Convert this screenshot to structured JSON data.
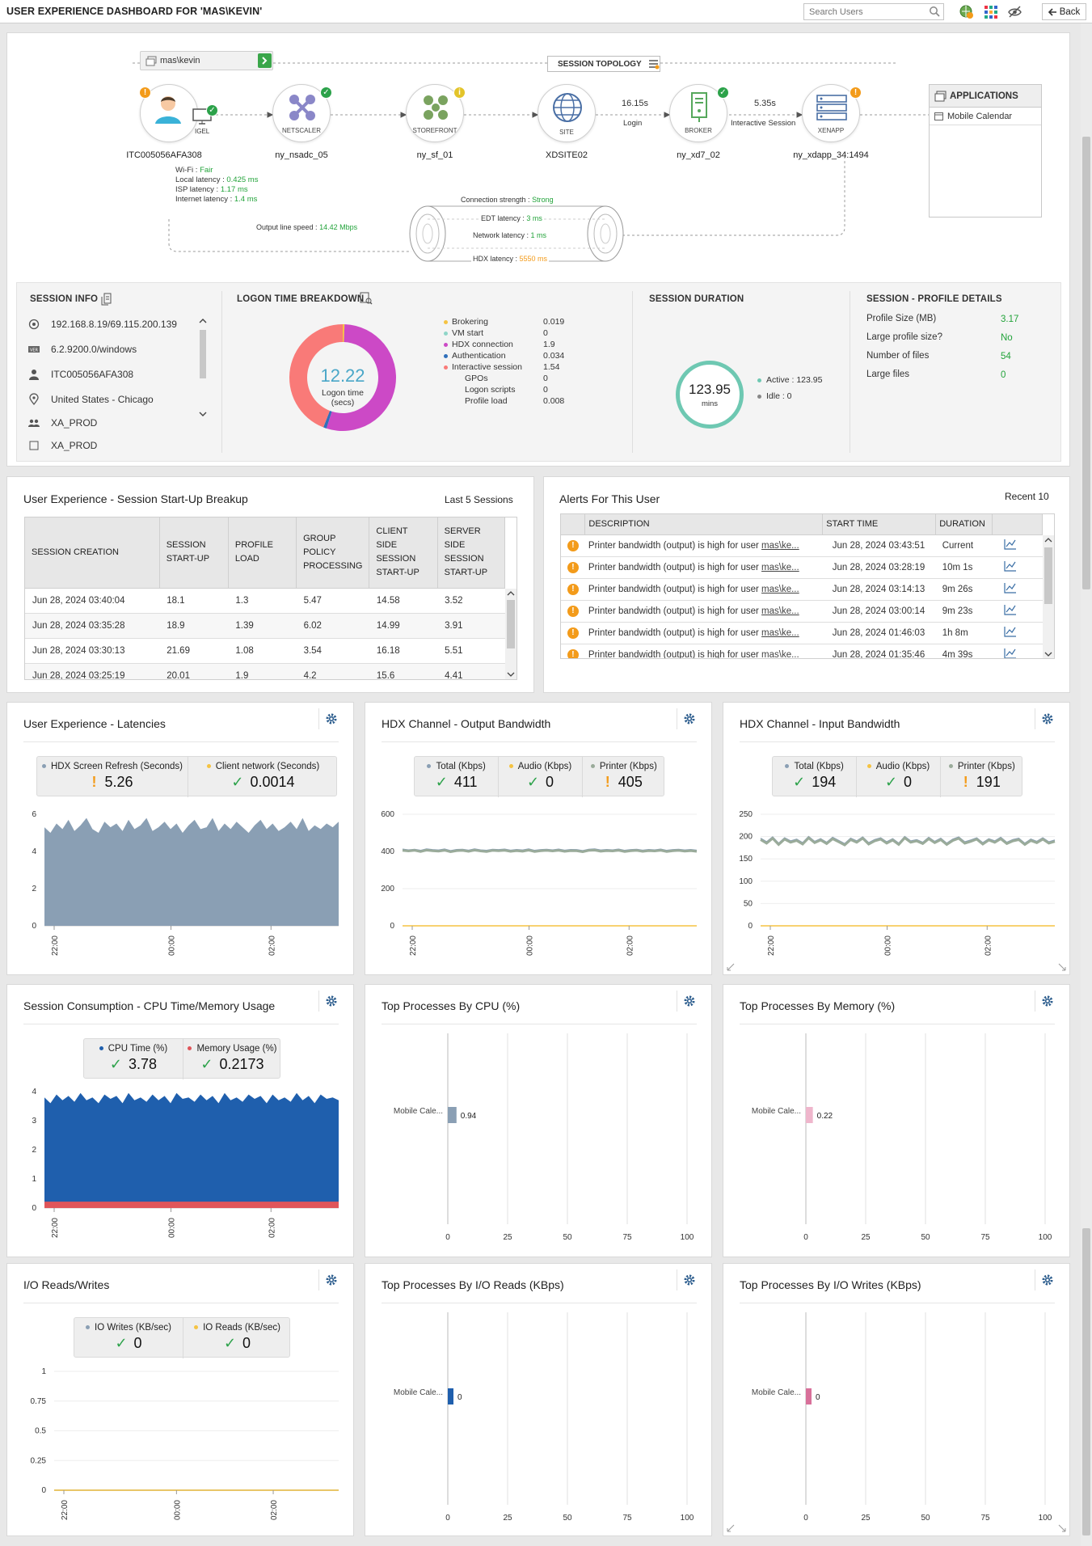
{
  "header": {
    "title": "USER EXPERIENCE DASHBOARD FOR 'MAS\\KEVIN'",
    "search_placeholder": "Search Users",
    "back_label": "Back"
  },
  "topology": {
    "user_chip": "mas\\kevin",
    "session_topology_label": "SESSION TOPOLOGY",
    "nodes": [
      {
        "name": "ITC005056AFA308",
        "label": "IGEL"
      },
      {
        "name": "ny_nsadc_05",
        "label": "NETSCALER"
      },
      {
        "name": "ny_sf_01",
        "label": "STOREFRONT"
      },
      {
        "name": "XDSITE02",
        "label": "SITE"
      },
      {
        "name": "ny_xd7_02",
        "label": "BROKER"
      },
      {
        "name": "ny_xdapp_34:1494",
        "label": "XENAPP"
      }
    ],
    "login_time": "16.15s",
    "login_label": "Login",
    "interactive_time": "5.35s",
    "interactive_label": "Interactive Session",
    "client_stats": [
      {
        "label": "Wi-Fi : ",
        "value": "Fair"
      },
      {
        "label": "Local latency : ",
        "value": "0.425 ms"
      },
      {
        "label": "ISP latency : ",
        "value": "1.17 ms"
      },
      {
        "label": "Internet latency : ",
        "value": "1.4 ms"
      }
    ],
    "connection_strength_label": "Connection strength : ",
    "connection_strength": "Strong",
    "edt_label": "EDT latency : ",
    "edt_value": "3 ms",
    "network_label": "Network latency : ",
    "network_value": "1 ms",
    "hdx_label": "HDX latency : ",
    "hdx_value": "5550 ms",
    "output_speed_label": "Output line speed : ",
    "output_speed": "14.42 Mbps",
    "applications_title": "APPLICATIONS",
    "applications": [
      "Mobile Calendar"
    ]
  },
  "session_info": {
    "title": "SESSION INFO",
    "items": [
      {
        "icon": "ip-icon",
        "text": "192.168.8.19/69.115.200.139"
      },
      {
        "icon": "version-icon",
        "text": "6.2.9200.0/windows"
      },
      {
        "icon": "user-icon",
        "text": "ITC005056AFA308"
      },
      {
        "icon": "location-icon",
        "text": "United States - Chicago"
      },
      {
        "icon": "group-icon",
        "text": "XA_PROD"
      },
      {
        "icon": "server-icon",
        "text": "XA_PROD"
      }
    ]
  },
  "logon_breakdown": {
    "title": "LOGON TIME BREAKDOWN",
    "total": "12.22",
    "total_label": "Logon time",
    "total_unit": "(secs)",
    "items": [
      {
        "name": "Brokering",
        "value": "0.019",
        "color": "#f5c342"
      },
      {
        "name": "VM start",
        "value": "0",
        "color": "#8fd5c8"
      },
      {
        "name": "HDX connection",
        "value": "1.9",
        "color": "#cc49c6"
      },
      {
        "name": "Authentication",
        "value": "0.034",
        "color": "#2f6fba"
      },
      {
        "name": "Interactive session",
        "value": "1.54",
        "color": "#f97a78"
      },
      {
        "name": "GPOs",
        "value": "0",
        "color": ""
      },
      {
        "name": "Logon scripts",
        "value": "0",
        "color": ""
      },
      {
        "name": "Profile load",
        "value": "0.008",
        "color": ""
      }
    ]
  },
  "session_duration": {
    "title": "SESSION DURATION",
    "value": "123.95",
    "unit": "mins",
    "active": "Active : 123.95",
    "idle": "Idle : 0"
  },
  "profile_details": {
    "title": "SESSION - PROFILE DETAILS",
    "rows": [
      {
        "label": "Profile Size (MB)",
        "value": "3.17"
      },
      {
        "label": "Large profile size?",
        "value": "No"
      },
      {
        "label": "Number of files",
        "value": "54"
      },
      {
        "label": "Large files",
        "value": "0"
      }
    ]
  },
  "startup_breakup": {
    "title": "User Experience - Session Start-Up Breakup",
    "subtitle": "Last 5 Sessions",
    "columns": [
      "SESSION CREATION",
      "SESSION START-UP",
      "PROFILE LOAD",
      "GROUP POLICY PROCESSING",
      "CLIENT SIDE SESSION START-UP",
      "SERVER SIDE SESSION START-UP"
    ],
    "rows": [
      [
        "Jun 28, 2024 03:40:04",
        "18.1",
        "1.3",
        "5.47",
        "14.58",
        "3.52"
      ],
      [
        "Jun 28, 2024 03:35:28",
        "18.9",
        "1.39",
        "6.02",
        "14.99",
        "3.91"
      ],
      [
        "Jun 28, 2024 03:30:13",
        "21.69",
        "1.08",
        "3.54",
        "16.18",
        "5.51"
      ],
      [
        "Jun 28, 2024 03:25:19",
        "20.01",
        "1.9",
        "4.2",
        "15.6",
        "4.41"
      ]
    ]
  },
  "alerts": {
    "title": "Alerts For This User",
    "subtitle": "Recent 10",
    "columns": [
      "DESCRIPTION",
      "START TIME",
      "DURATION"
    ],
    "desc_prefix": "Printer bandwidth (output) is high for user ",
    "desc_link": "mas\\ke...",
    "rows": [
      {
        "start": "Jun 28, 2024 03:43:51",
        "duration": "Current"
      },
      {
        "start": "Jun 28, 2024 03:28:19",
        "duration": "10m 1s"
      },
      {
        "start": "Jun 28, 2024 03:14:13",
        "duration": "9m 26s"
      },
      {
        "start": "Jun 28, 2024 03:00:14",
        "duration": "9m 23s"
      },
      {
        "start": "Jun 28, 2024 01:46:03",
        "duration": "1h 8m"
      },
      {
        "start": "Jun 28, 2024 01:35:46",
        "duration": "4m 39s"
      }
    ]
  },
  "panels": {
    "latencies": {
      "title": "User Experience - Latencies",
      "kpis": [
        {
          "label": "HDX Screen Refresh (Seconds)",
          "value": "5.26",
          "status": "warn",
          "color": "#8a9fb4"
        },
        {
          "label": "Client network (Seconds)",
          "value": "0.0014",
          "status": "ok",
          "color": "#f5c342"
        }
      ]
    },
    "output_bw": {
      "title": "HDX Channel - Output Bandwidth",
      "kpis": [
        {
          "label": "Total (Kbps)",
          "value": "411",
          "status": "ok",
          "color": "#8a9fb4"
        },
        {
          "label": "Audio (Kbps)",
          "value": "0",
          "status": "ok",
          "color": "#f5c342"
        },
        {
          "label": "Printer (Kbps)",
          "value": "405",
          "status": "warn",
          "color": "#9aab9a"
        }
      ]
    },
    "input_bw": {
      "title": "HDX Channel - Input Bandwidth",
      "kpis": [
        {
          "label": "Total (Kbps)",
          "value": "194",
          "status": "ok",
          "color": "#8a9fb4"
        },
        {
          "label": "Audio (Kbps)",
          "value": "0",
          "status": "ok",
          "color": "#f5c342"
        },
        {
          "label": "Printer (Kbps)",
          "value": "191",
          "status": "warn",
          "color": "#9aab9a"
        }
      ]
    },
    "cpu_mem": {
      "title": "Session Consumption - CPU Time/Memory Usage",
      "kpis": [
        {
          "label": "CPU Time (%)",
          "value": "3.78",
          "status": "ok",
          "color": "#1f5fad"
        },
        {
          "label": "Memory Usage (%)",
          "value": "0.2173",
          "status": "ok",
          "color": "#e0555a"
        }
      ]
    },
    "top_cpu": {
      "title": "Top Processes By CPU (%)"
    },
    "top_mem": {
      "title": "Top Processes By Memory (%)"
    },
    "io": {
      "title": "I/O Reads/Writes",
      "kpis": [
        {
          "label": "IO Writes (KB/sec)",
          "value": "0",
          "status": "ok",
          "color": "#8a9fb4"
        },
        {
          "label": "IO Reads (KB/sec)",
          "value": "0",
          "status": "ok",
          "color": "#f5c342"
        }
      ]
    },
    "top_io_reads": {
      "title": "Top Processes By I/O Reads (KBps)"
    },
    "top_io_writes": {
      "title": "Top Processes By I/O Writes (KBps)"
    }
  },
  "chart_data": [
    {
      "id": "latencies",
      "type": "area",
      "x_ticks": [
        "22:00",
        "00:00",
        "02:00"
      ],
      "ylim": [
        0,
        6
      ],
      "y_ticks": [
        0,
        2,
        4,
        6
      ],
      "series": [
        {
          "name": "HDX Screen Refresh (Seconds)",
          "values": [
            5.3,
            5.0,
            5.5,
            5.2,
            5.7,
            5.1,
            5.4,
            5.8,
            5.2,
            5.0,
            5.6,
            5.3,
            5.5,
            5.1,
            5.7,
            5.2,
            5.4,
            5.8,
            5.1,
            5.3,
            5.6,
            5.2,
            5.5,
            5.0,
            5.4,
            5.7,
            5.2,
            5.3,
            5.8,
            5.1,
            5.5,
            5.2,
            5.6,
            5.3,
            5.0,
            5.4,
            5.7,
            5.2,
            5.5,
            5.1,
            5.3,
            5.6,
            5.2,
            5.8,
            5.1,
            5.4,
            5.2,
            5.5,
            5.3,
            5.6
          ],
          "color": "#8a9fb4"
        },
        {
          "name": "Client network (Seconds)",
          "values": [
            0.0014,
            0.0014,
            0.0014
          ],
          "color": "#f5c342"
        }
      ]
    },
    {
      "id": "output_bw",
      "type": "line",
      "x_ticks": [
        "22:00",
        "00:00",
        "02:00"
      ],
      "ylim": [
        0,
        600
      ],
      "y_ticks": [
        0,
        200,
        400,
        600
      ],
      "series": [
        {
          "name": "Total (Kbps)",
          "values": [
            412,
            408,
            411,
            405,
            413,
            409,
            407,
            412,
            404,
            410,
            411,
            406,
            413,
            408,
            405,
            411,
            409,
            412,
            406,
            410,
            407,
            413,
            405,
            409,
            411,
            408,
            412,
            406,
            410,
            409,
            404,
            411,
            413,
            407,
            410,
            408,
            412,
            405,
            409,
            411,
            406,
            410,
            408,
            412,
            405,
            409,
            411,
            407,
            410,
            406
          ],
          "color": "#8a9fb4"
        },
        {
          "name": "Audio (Kbps)",
          "values": [
            0,
            0,
            0
          ],
          "color": "#f5c342"
        },
        {
          "name": "Printer (Kbps)",
          "values": [
            405,
            402,
            406,
            399,
            407,
            403,
            401,
            406,
            398,
            404,
            405,
            400,
            407,
            402,
            399,
            405,
            403,
            406,
            400,
            404,
            401,
            407,
            399,
            403,
            405,
            402,
            406,
            400,
            404,
            403,
            398,
            405,
            407,
            401,
            404,
            402,
            406,
            399,
            403,
            405,
            400,
            404,
            402,
            406,
            399,
            403,
            405,
            401,
            404,
            400
          ],
          "color": "#9aab9a"
        }
      ]
    },
    {
      "id": "input_bw",
      "type": "line",
      "x_ticks": [
        "22:00",
        "00:00",
        "02:00"
      ],
      "ylim": [
        0,
        250
      ],
      "y_ticks": [
        0,
        50,
        100,
        150,
        200,
        250
      ],
      "series": [
        {
          "name": "Total (Kbps)",
          "values": [
            196,
            188,
            199,
            185,
            197,
            190,
            194,
            186,
            200,
            189,
            195,
            187,
            198,
            191,
            184,
            196,
            190,
            199,
            186,
            193,
            197,
            188,
            195,
            185,
            200,
            190,
            193,
            187,
            198,
            189,
            196,
            185,
            194,
            199,
            188,
            192,
            197,
            186,
            195,
            190,
            198,
            187,
            193,
            196,
            185,
            194,
            189,
            197,
            188,
            192
          ],
          "color": "#8a9fb4"
        },
        {
          "name": "Audio (Kbps)",
          "values": [
            0,
            0,
            0
          ],
          "color": "#f5c342"
        },
        {
          "name": "Printer (Kbps)",
          "values": [
            193,
            185,
            196,
            182,
            194,
            187,
            191,
            183,
            197,
            186,
            192,
            184,
            195,
            188,
            181,
            193,
            187,
            196,
            183,
            190,
            194,
            185,
            192,
            182,
            197,
            187,
            190,
            184,
            195,
            186,
            193,
            182,
            191,
            196,
            185,
            189,
            194,
            183,
            192,
            187,
            195,
            184,
            190,
            193,
            182,
            191,
            186,
            194,
            185,
            189
          ],
          "color": "#9aab9a"
        }
      ]
    },
    {
      "id": "cpu_mem",
      "type": "area",
      "x_ticks": [
        "22:00",
        "00:00",
        "02:00"
      ],
      "ylim": [
        0,
        4
      ],
      "y_ticks": [
        0,
        1,
        2,
        3,
        4
      ],
      "series": [
        {
          "name": "CPU Time (%)",
          "values": [
            3.8,
            3.6,
            3.9,
            3.7,
            3.85,
            3.65,
            3.95,
            3.7,
            3.8,
            3.6,
            3.9,
            3.75,
            3.85,
            3.6,
            3.95,
            3.7,
            3.8,
            3.65,
            3.9,
            3.7,
            3.85,
            3.6,
            3.95,
            3.75,
            3.8,
            3.65,
            3.9,
            3.7,
            3.85,
            3.6,
            3.95,
            3.7,
            3.8,
            3.65,
            3.9,
            3.75,
            3.85,
            3.6,
            3.9,
            3.7,
            3.8,
            3.65,
            3.95,
            3.7,
            3.85,
            3.6,
            3.9,
            3.75,
            3.8,
            3.7
          ],
          "color": "#1f5fad"
        },
        {
          "name": "Memory Usage (%)",
          "values": [
            0.22,
            0.22,
            0.22
          ],
          "color": "#e0555a"
        }
      ]
    },
    {
      "id": "top_cpu",
      "type": "bar",
      "categories": [
        "Mobile Cale..."
      ],
      "values": [
        0.94
      ],
      "xlim": [
        0,
        100
      ],
      "x_ticks": [
        0,
        25,
        50,
        75,
        100
      ],
      "color": "#8a9fb4"
    },
    {
      "id": "top_mem",
      "type": "bar",
      "categories": [
        "Mobile Cale..."
      ],
      "values": [
        0.22
      ],
      "xlim": [
        0,
        100
      ],
      "x_ticks": [
        0,
        25,
        50,
        75,
        100
      ],
      "color": "#efb6cc"
    },
    {
      "id": "io",
      "type": "line",
      "x_ticks": [
        "22:00",
        "00:00",
        "02:00"
      ],
      "ylim": [
        0,
        1
      ],
      "y_ticks": [
        0,
        0.25,
        0.5,
        0.75,
        1
      ],
      "series": [
        {
          "name": "IO Writes (KB/sec)",
          "values": [
            0,
            0,
            0
          ],
          "color": "#8a9fb4"
        },
        {
          "name": "IO Reads (KB/sec)",
          "values": [
            0,
            0,
            0
          ],
          "color": "#f5c342"
        }
      ]
    },
    {
      "id": "top_io_reads",
      "type": "bar",
      "categories": [
        "Mobile Cale..."
      ],
      "values": [
        0
      ],
      "xlim": [
        0,
        100
      ],
      "x_ticks": [
        0,
        25,
        50,
        75,
        100
      ],
      "color": "#1f5fad"
    },
    {
      "id": "top_io_writes",
      "type": "bar",
      "categories": [
        "Mobile Cale..."
      ],
      "values": [
        0
      ],
      "xlim": [
        0,
        100
      ],
      "x_ticks": [
        0,
        25,
        50,
        75,
        100
      ],
      "color": "#d8709a"
    }
  ]
}
